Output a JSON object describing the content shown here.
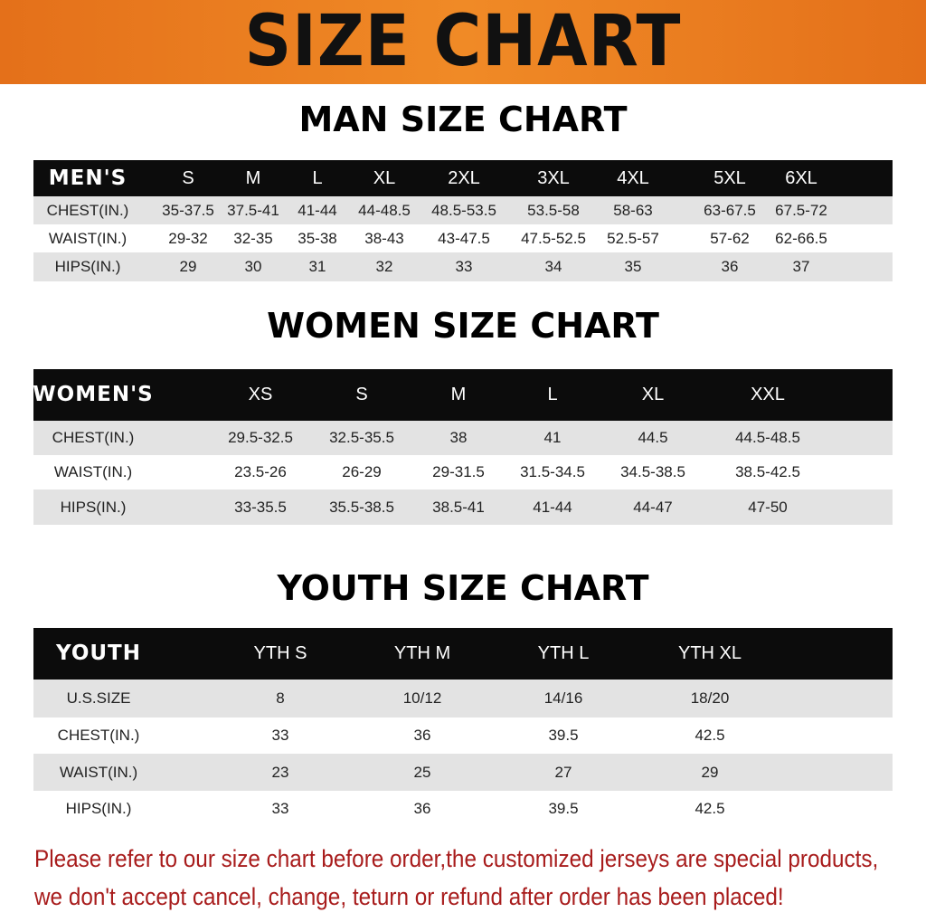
{
  "banner": {
    "title": "SIZE CHART",
    "color": "#e97a1f"
  },
  "men": {
    "title": "MAN SIZE CHART",
    "header": [
      "MEN'S",
      "S",
      "M",
      "L",
      "XL",
      "2XL",
      "3XL",
      "4XL",
      "5XL",
      "6XL"
    ],
    "rows": [
      [
        "CHEST(IN.)",
        "35-37.5",
        "37.5-41",
        "41-44",
        "44-48.5",
        "48.5-53.5",
        "53.5-58",
        "58-63",
        "63-67.5",
        "67.5-72"
      ],
      [
        "WAIST(IN.)",
        "29-32",
        "32-35",
        "35-38",
        "38-43",
        "43-47.5",
        "47.5-52.5",
        "52.5-57",
        "57-62",
        "62-66.5"
      ],
      [
        "HIPS(IN.)",
        "29",
        "30",
        "31",
        "32",
        "33",
        "34",
        "35",
        "36",
        "37"
      ]
    ]
  },
  "women": {
    "title": "WOMEN SIZE CHART",
    "header": [
      "WOMEN'S",
      "XS",
      "S",
      "M",
      "L",
      "XL",
      "XXL"
    ],
    "rows": [
      [
        "CHEST(IN.)",
        "29.5-32.5",
        "32.5-35.5",
        "38",
        "41",
        "44.5",
        "44.5-48.5"
      ],
      [
        "WAIST(IN.)",
        "23.5-26",
        "26-29",
        "29-31.5",
        "31.5-34.5",
        "34.5-38.5",
        "38.5-42.5"
      ],
      [
        "HIPS(IN.)",
        "33-35.5",
        "35.5-38.5",
        "38.5-41",
        "41-44",
        "44-47",
        "47-50"
      ]
    ]
  },
  "youth": {
    "title": "YOUTH SIZE CHART",
    "header": [
      "YOUTH",
      "YTH S",
      "YTH M",
      "YTH L",
      "YTH XL"
    ],
    "rows": [
      [
        "U.S.SIZE",
        "8",
        "10/12",
        "14/16",
        "18/20"
      ],
      [
        "CHEST(IN.)",
        "33",
        "36",
        "39.5",
        "42.5"
      ],
      [
        "WAIST(IN.)",
        "23",
        "25",
        "27",
        "29"
      ],
      [
        "HIPS(IN.)",
        "33",
        "36",
        "39.5",
        "42.5"
      ]
    ]
  },
  "notes": [
    "Please refer to our size chart before order,the customized jerseys are special products,",
    "we don't accept cancel, change, teturn or refund after order has been placed!"
  ],
  "note_color": "#a81c1c"
}
